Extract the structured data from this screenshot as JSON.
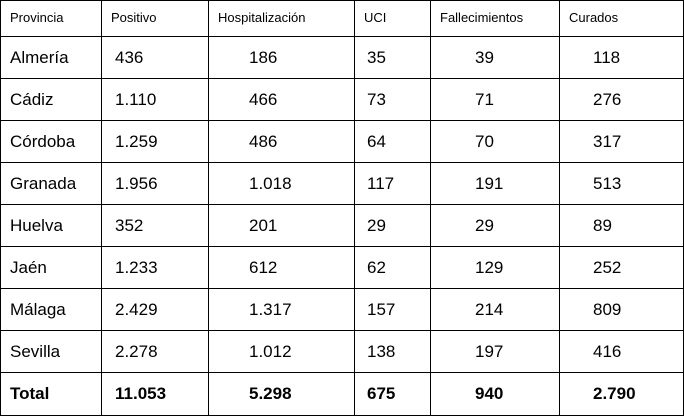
{
  "table": {
    "headers": [
      "Provincia",
      "Positivo",
      "Hospitalización",
      "UCI",
      "Fallecimientos",
      "Curados"
    ],
    "rows": [
      [
        "Almería",
        "436",
        "186",
        "35",
        "39",
        "118"
      ],
      [
        "Cádiz",
        "1.110",
        "466",
        "73",
        "71",
        "276"
      ],
      [
        "Córdoba",
        "1.259",
        "486",
        "64",
        "70",
        "317"
      ],
      [
        "Granada",
        "1.956",
        "1.018",
        "117",
        "191",
        "513"
      ],
      [
        "Huelva",
        "352",
        "201",
        "29",
        "29",
        "89"
      ],
      [
        "Jaén",
        "1.233",
        "612",
        "62",
        "129",
        "252"
      ],
      [
        "Málaga",
        "2.429",
        "1.317",
        "157",
        "214",
        "809"
      ],
      [
        "Sevilla",
        "2.278",
        "1.012",
        "138",
        "197",
        "416"
      ]
    ],
    "total": [
      "Total",
      "11.053",
      "5.298",
      "675",
      "940",
      "2.790"
    ]
  }
}
